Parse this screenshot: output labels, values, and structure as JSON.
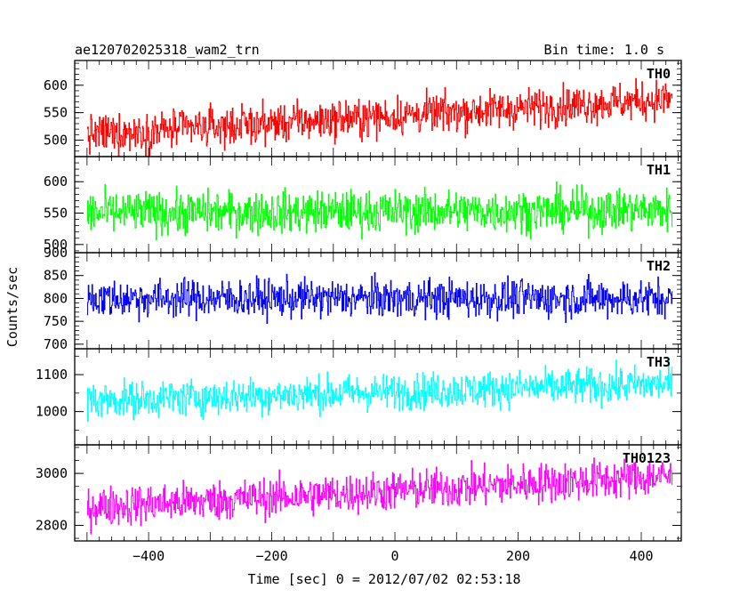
{
  "header": {
    "title": "ae120702025318_wam2_trn",
    "bin_time": "Bin time: 1.0 s"
  },
  "chart_data": {
    "type": "line",
    "xlabel": "Time [sec] 0 = 2012/07/02 02:53:18",
    "ylabel": "Counts/sec",
    "xlim": [
      -520,
      465
    ],
    "x_ticks": [
      -400,
      -200,
      0,
      200,
      400
    ],
    "x_tick_labels": [
      "−400",
      "−200",
      "0",
      "200",
      "400"
    ],
    "x_range": [
      -500,
      450
    ],
    "bin_sec": 1.0,
    "panels": [
      {
        "name": "TH0",
        "color": "#ff0000",
        "ylim": [
          470,
          645
        ],
        "y_ticks": [
          500,
          550,
          600
        ],
        "y_tick_labels": [
          "500",
          "550",
          "600"
        ],
        "trend_start": 510,
        "trend_end": 575,
        "noise": 25
      },
      {
        "name": "TH1",
        "color": "#00ff00",
        "ylim": [
          487,
          640
        ],
        "y_ticks": [
          500,
          550,
          600
        ],
        "y_tick_labels": [
          "500",
          "550",
          "600"
        ],
        "trend_start": 550,
        "trend_end": 555,
        "noise": 24
      },
      {
        "name": "TH2",
        "color": "#0000ff",
        "ylim": [
          690,
          900
        ],
        "y_ticks": [
          700,
          750,
          800,
          850,
          900
        ],
        "y_tick_labels": [
          "700",
          "750",
          "800",
          "850",
          "900"
        ],
        "trend_start": 800,
        "trend_end": 800,
        "noise": 30
      },
      {
        "name": "TH3",
        "color": "#00ffff",
        "ylim": [
          910,
          1170
        ],
        "y_ticks": [
          1000,
          1100
        ],
        "y_tick_labels": [
          "1000",
          "1100"
        ],
        "trend_start": 1030,
        "trend_end": 1075,
        "noise": 35
      },
      {
        "name": "TH0123",
        "color": "#ff00ff",
        "ylim": [
          2740,
          3110
        ],
        "y_ticks": [
          2800,
          3000
        ],
        "y_tick_labels": [
          "2800",
          "3000"
        ],
        "trend_start": 2870,
        "trend_end": 2990,
        "noise": 55
      }
    ]
  }
}
